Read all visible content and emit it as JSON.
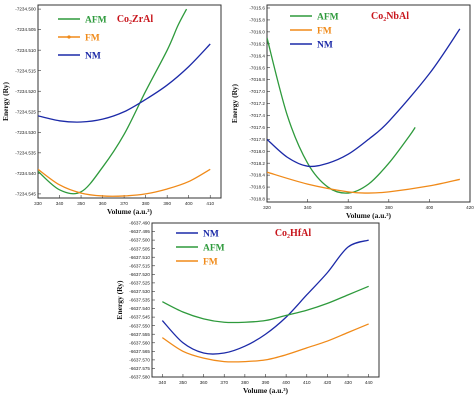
{
  "chart_data": [
    {
      "type": "line",
      "title": "Co₂ZrAl",
      "xlabel": "Volume (a.u.³)",
      "ylabel": "Energy (Ry)",
      "xlim": [
        330,
        415
      ],
      "ylim": [
        -7234.546,
        -7234.499
      ],
      "x_ticks": [
        "330",
        "340",
        "350",
        "360",
        "370",
        "380",
        "390",
        "400",
        "410"
      ],
      "y_ticks": [
        "-7234.500",
        "-7234.505",
        "-7234.510",
        "-7234.515",
        "-7234.520",
        "-7234.525",
        "-7234.530",
        "-7234.535",
        "-7234.540",
        "-7234.545"
      ],
      "legend_position": "top-left",
      "series": [
        {
          "name": "AFM",
          "color": "#2e9a3c",
          "x": [
            330,
            340,
            350,
            360,
            370,
            380,
            390,
            395,
            399
          ],
          "y": [
            -7234.5395,
            -7234.544,
            -7234.5445,
            -7234.5385,
            -7234.5305,
            -7234.52,
            -7234.51,
            -7234.504,
            -7234.5
          ]
        },
        {
          "name": "FM",
          "color": "#f08a19",
          "x": [
            330,
            340,
            350,
            360,
            370,
            380,
            390,
            400,
            410
          ],
          "y": [
            -7234.539,
            -7234.5428,
            -7234.5448,
            -7234.5455,
            -7234.5455,
            -7234.545,
            -7234.5438,
            -7234.542,
            -7234.539
          ]
        },
        {
          "name": "NM",
          "color": "#1c2aa8",
          "x": [
            330,
            340,
            350,
            360,
            370,
            380,
            390,
            400,
            410
          ],
          "y": [
            -7234.526,
            -7234.5272,
            -7234.5275,
            -7234.5268,
            -7234.525,
            -7234.522,
            -7234.5185,
            -7234.514,
            -7234.5085
          ]
        }
      ]
    },
    {
      "type": "line",
      "title": "Co₂NbAl",
      "xlabel": "Volume (a.u.³)",
      "ylabel": "Energy (Ry)",
      "xlim": [
        320,
        420
      ],
      "ylim": [
        -7018.85,
        -7015.55
      ],
      "x_ticks": [
        "320",
        "340",
        "360",
        "380",
        "400",
        "420"
      ],
      "y_ticks": [
        "-7015.6",
        "-7015.8",
        "-7016.0",
        "-7016.2",
        "-7016.4",
        "-7016.6",
        "-7016.8",
        "-7017.0",
        "-7017.2",
        "-7017.4",
        "-7017.6",
        "-7017.8",
        "-7018.0",
        "-7018.2",
        "-7018.4",
        "-7018.6",
        "-7018.8"
      ],
      "legend_position": "top-left",
      "series": [
        {
          "name": "AFM",
          "color": "#2e9a3c",
          "x": [
            320,
            330,
            340,
            350,
            360,
            370,
            380,
            390,
            393
          ],
          "y": [
            -7016.1,
            -7017.4,
            -7018.2,
            -7018.6,
            -7018.7,
            -7018.55,
            -7018.2,
            -7017.75,
            -7017.6
          ]
        },
        {
          "name": "FM",
          "color": "#f08a19",
          "x": [
            320,
            340,
            360,
            370,
            380,
            400,
            415
          ],
          "y": [
            -7018.35,
            -7018.55,
            -7018.68,
            -7018.7,
            -7018.68,
            -7018.58,
            -7018.47
          ]
        },
        {
          "name": "NM",
          "color": "#1c2aa8",
          "x": [
            320,
            330,
            340,
            350,
            360,
            370,
            380,
            400,
            415
          ],
          "y": [
            -7017.8,
            -7018.1,
            -7018.25,
            -7018.2,
            -7018.05,
            -7017.8,
            -7017.5,
            -7016.7,
            -7015.95
          ]
        }
      ]
    },
    {
      "type": "line",
      "title": "Co₂HfAl",
      "xlabel": "Volume (a.u.³)",
      "ylabel": "Energy (Ry)",
      "xlim": [
        335,
        445
      ],
      "ylim": [
        -6637.58,
        -6637.49
      ],
      "x_ticks": [
        "340",
        "350",
        "360",
        "370",
        "380",
        "390",
        "400",
        "410",
        "420",
        "430",
        "440"
      ],
      "y_ticks": [
        "-6637.490",
        "-6637.495",
        "-6637.500",
        "-6637.505",
        "-6637.510",
        "-6637.515",
        "-6637.520",
        "-6637.525",
        "-6637.530",
        "-6637.535",
        "-6637.540",
        "-6637.545",
        "-6637.550",
        "-6637.555",
        "-6637.560",
        "-6637.565",
        "-6637.570",
        "-6637.575",
        "-6637.580"
      ],
      "legend_position": "top-left",
      "series": [
        {
          "name": "NM",
          "color": "#1c2aa8",
          "x": [
            340,
            350,
            360,
            370,
            380,
            390,
            400,
            410,
            420,
            430,
            440
          ],
          "y": [
            -6637.547,
            -6637.56,
            -6637.566,
            -6637.566,
            -6637.562,
            -6637.555,
            -6637.545,
            -6637.532,
            -6637.519,
            -6637.504,
            -6637.5
          ]
        },
        {
          "name": "AFM",
          "color": "#2e9a3c",
          "x": [
            340,
            350,
            360,
            370,
            380,
            390,
            400,
            410,
            420,
            430,
            440
          ],
          "y": [
            -6637.536,
            -6637.542,
            -6637.546,
            -6637.548,
            -6637.548,
            -6637.547,
            -6637.544,
            -6637.541,
            -6637.537,
            -6637.532,
            -6637.527
          ]
        },
        {
          "name": "FM",
          "color": "#f08a19",
          "x": [
            340,
            350,
            360,
            370,
            380,
            390,
            400,
            410,
            420,
            430,
            440
          ],
          "y": [
            -6637.557,
            -6637.565,
            -6637.569,
            -6637.571,
            -6637.571,
            -6637.57,
            -6637.567,
            -6637.563,
            -6637.559,
            -6637.554,
            -6637.549
          ]
        }
      ]
    }
  ]
}
